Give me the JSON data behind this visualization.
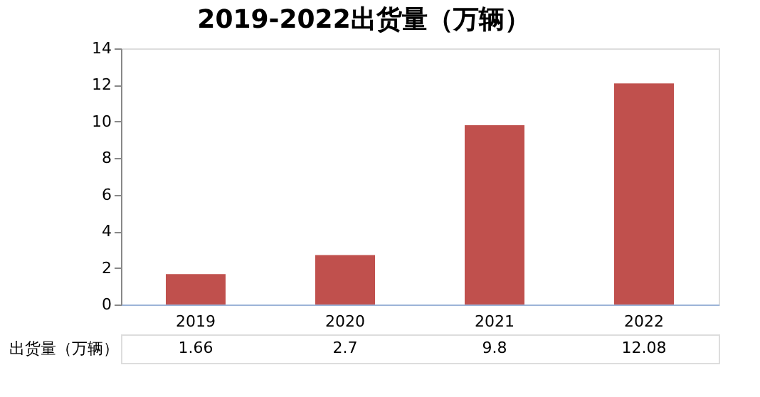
{
  "chart_data": {
    "type": "bar",
    "title": "2019-2022出货量（万辆）",
    "categories": [
      "2019",
      "2020",
      "2021",
      "2022"
    ],
    "series": [
      {
        "name": "出货量（万辆）",
        "color": "#c0504d",
        "values": [
          1.66,
          2.7,
          9.8,
          12.08
        ]
      }
    ],
    "ylim": [
      0,
      14
    ],
    "yticks": [
      0,
      2,
      4,
      6,
      8,
      10,
      12,
      14
    ],
    "grid": false,
    "data_labels": true
  }
}
